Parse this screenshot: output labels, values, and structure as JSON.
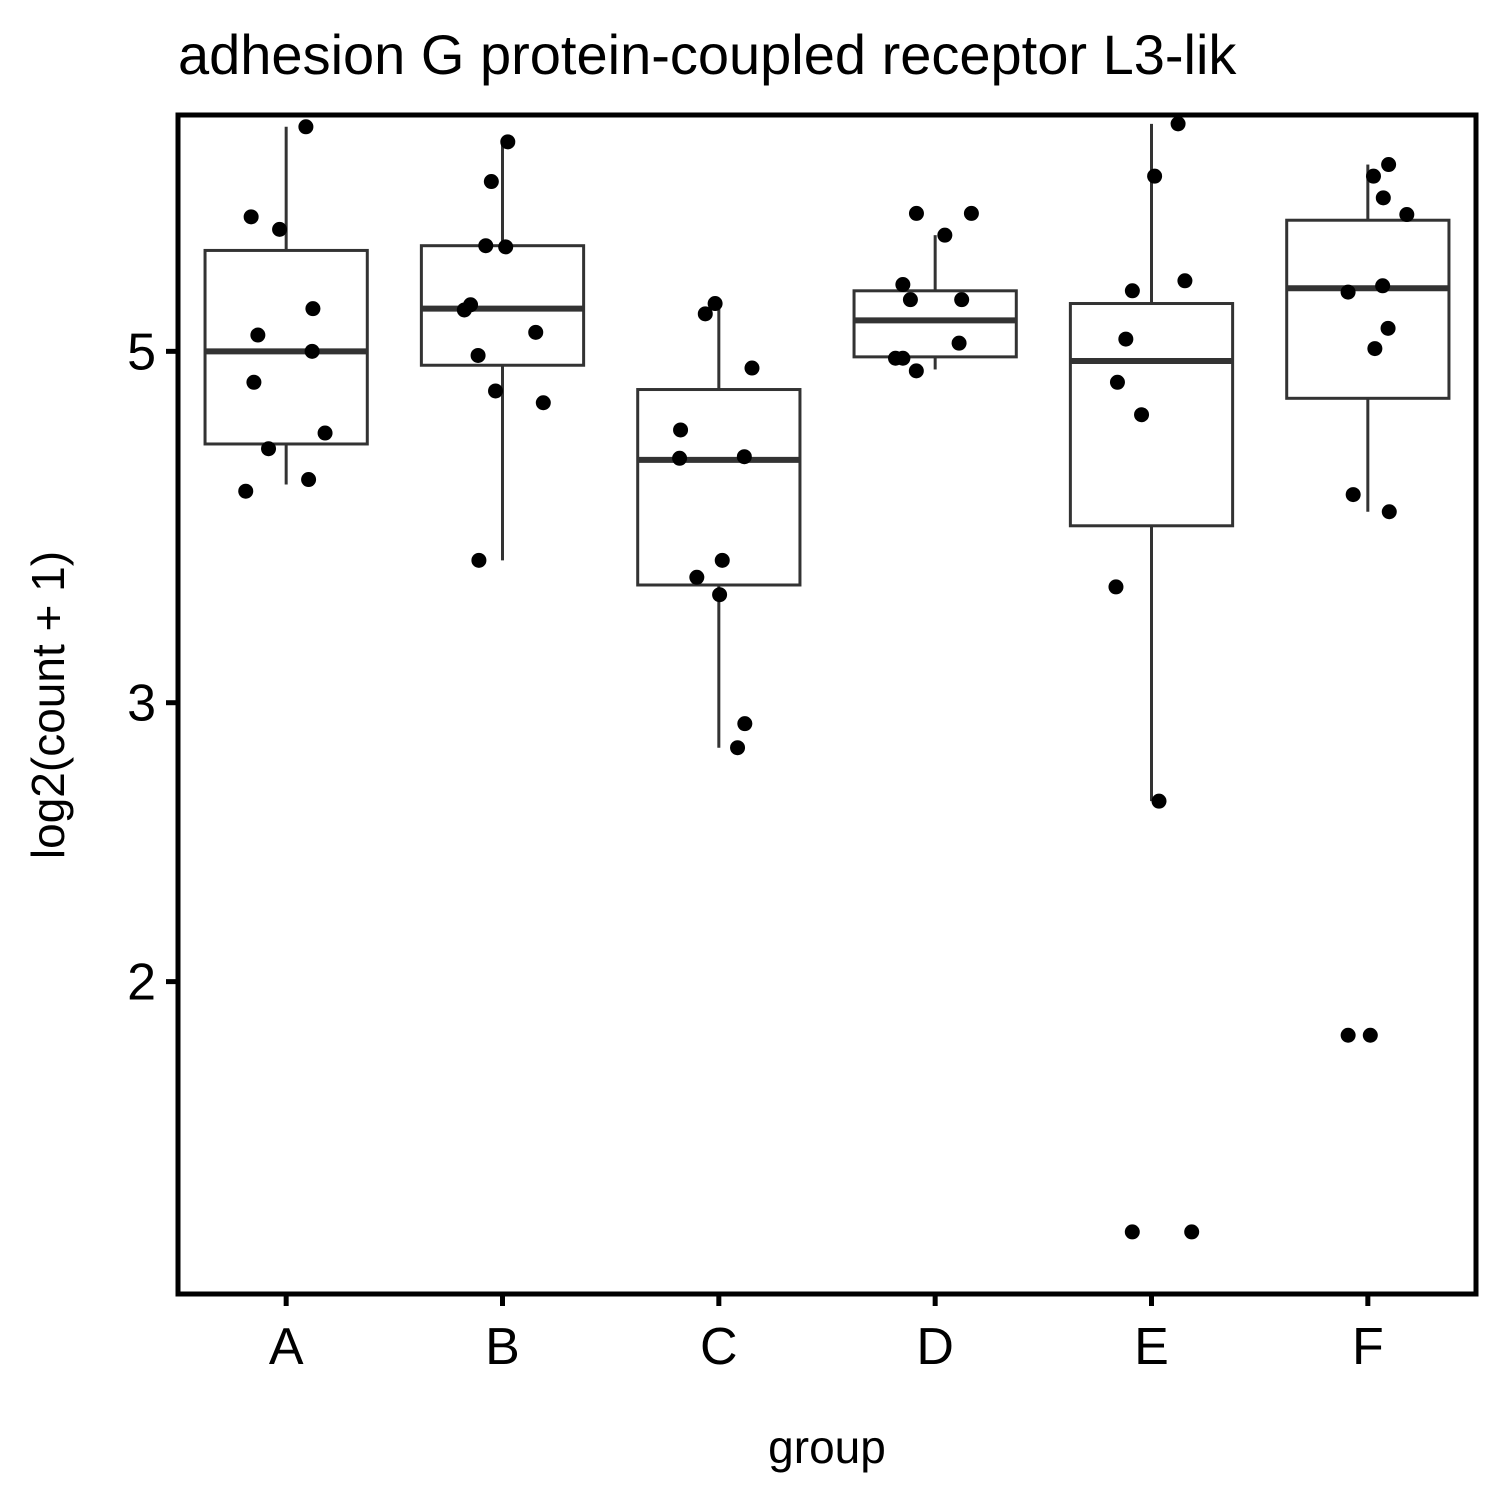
{
  "chart_data": {
    "type": "boxplot",
    "title": "adhesion G protein-coupled receptor L3-lik",
    "xlabel": "group",
    "ylabel": "log2(count + 1)",
    "y_scale": "log",
    "ylim": [
      1.27,
      7.05
    ],
    "yticks": [
      {
        "value": 2,
        "label": "2"
      },
      {
        "value": 3,
        "label": "3"
      },
      {
        "value": 5,
        "label": "5"
      }
    ],
    "categories": [
      "A",
      "B",
      "C",
      "D",
      "E",
      "F"
    ],
    "grid": false,
    "legend": "none",
    "box_color": "#333333",
    "point_color": "#000000",
    "groups": [
      {
        "name": "A",
        "box": {
          "whisker_low": 4.12,
          "q1": 4.37,
          "median": 5.0,
          "q3": 5.79,
          "whisker_high": 6.93
        },
        "points": [
          6.93,
          6.08,
          5.97,
          5.32,
          5.12,
          5.0,
          4.78,
          4.44,
          4.34,
          4.15,
          4.08
        ]
      },
      {
        "name": "B",
        "box": {
          "whisker_low": 3.69,
          "q1": 4.9,
          "median": 5.32,
          "q3": 5.83,
          "whisker_high": 6.75
        },
        "points": [
          6.78,
          6.4,
          5.83,
          5.82,
          5.35,
          5.31,
          5.14,
          4.97,
          4.72,
          4.64,
          3.69
        ]
      },
      {
        "name": "C",
        "box": {
          "whisker_low": 2.81,
          "q1": 3.56,
          "median": 4.27,
          "q3": 4.73,
          "whisker_high": 5.36
        },
        "points": [
          5.36,
          5.28,
          4.88,
          4.46,
          4.29,
          4.28,
          3.69,
          3.6,
          3.51,
          2.91,
          2.81
        ]
      },
      {
        "name": "D",
        "box": {
          "whisker_low": 4.87,
          "q1": 4.96,
          "median": 5.23,
          "q3": 5.46,
          "whisker_high": 5.92
        },
        "points": [
          6.11,
          6.11,
          5.92,
          5.51,
          5.39,
          5.39,
          5.06,
          4.95,
          4.95,
          4.86
        ]
      },
      {
        "name": "E",
        "box": {
          "whisker_low": 2.6,
          "q1": 3.88,
          "median": 4.93,
          "q3": 5.36,
          "whisker_high": 6.96
        },
        "points": [
          6.96,
          6.45,
          5.54,
          5.46,
          5.09,
          4.78,
          4.56,
          3.55,
          2.6,
          1.39,
          1.39
        ]
      },
      {
        "name": "F",
        "box": {
          "whisker_low": 3.96,
          "q1": 4.67,
          "median": 5.48,
          "q3": 6.05,
          "whisker_high": 6.56
        },
        "points": [
          6.56,
          6.45,
          6.25,
          6.1,
          5.5,
          5.45,
          5.17,
          5.02,
          4.06,
          3.96,
          1.85,
          1.85
        ]
      }
    ]
  }
}
